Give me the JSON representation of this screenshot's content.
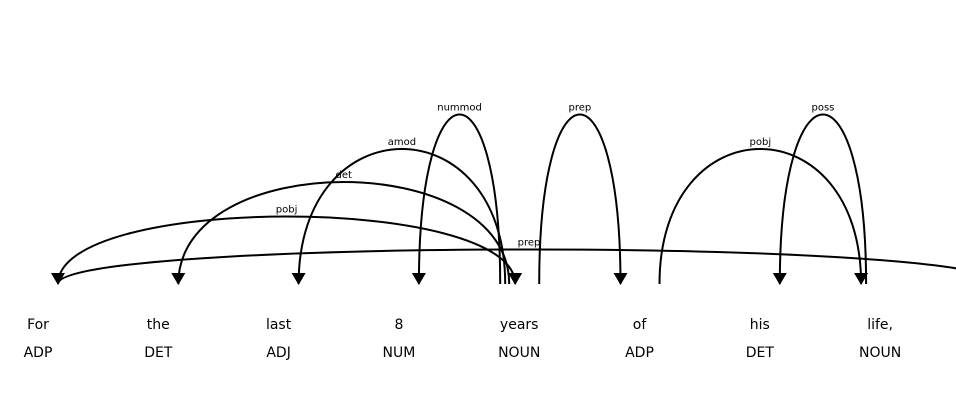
{
  "tokens": [
    {
      "text": "For",
      "tag": "ADP"
    },
    {
      "text": "the",
      "tag": "DET"
    },
    {
      "text": "last",
      "tag": "ADJ"
    },
    {
      "text": "8",
      "tag": "NUM"
    },
    {
      "text": "years",
      "tag": "NOUN"
    },
    {
      "text": "of",
      "tag": "ADP"
    },
    {
      "text": "his",
      "tag": "DET"
    },
    {
      "text": "life,",
      "tag": "NOUN"
    }
  ],
  "arcs": [
    {
      "label": "prep",
      "start": 0,
      "end": 8,
      "dir": "left"
    },
    {
      "label": "pobj",
      "start": 0,
      "end": 4,
      "dir": "right"
    },
    {
      "label": "det",
      "start": 1,
      "end": 4,
      "dir": "left"
    },
    {
      "label": "amod",
      "start": 2,
      "end": 4,
      "dir": "left"
    },
    {
      "label": "nummod",
      "start": 3,
      "end": 4,
      "dir": "left"
    },
    {
      "label": "prep",
      "start": 4,
      "end": 5,
      "dir": "right"
    },
    {
      "label": "pobj",
      "start": 5,
      "end": 7,
      "dir": "right"
    },
    {
      "label": "poss",
      "start": 6,
      "end": 7,
      "dir": "left"
    }
  ],
  "colors": {
    "ink": "#000000",
    "background": "#ffffff"
  }
}
